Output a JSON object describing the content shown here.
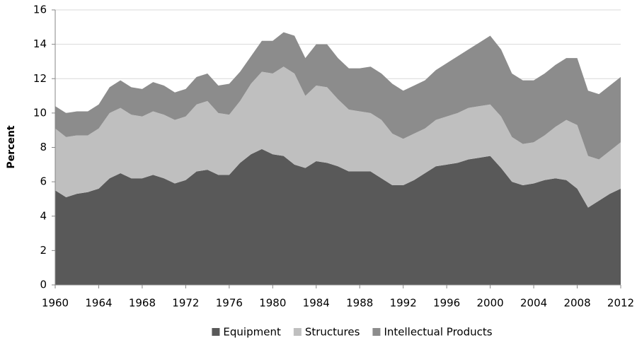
{
  "chart_data": {
    "type": "area",
    "stacked": true,
    "y_label": "Percent",
    "x": [
      1960,
      1961,
      1962,
      1963,
      1964,
      1965,
      1966,
      1967,
      1968,
      1969,
      1970,
      1971,
      1972,
      1973,
      1974,
      1975,
      1976,
      1977,
      1978,
      1979,
      1980,
      1981,
      1982,
      1983,
      1984,
      1985,
      1986,
      1987,
      1988,
      1989,
      1990,
      1991,
      1992,
      1993,
      1994,
      1995,
      1996,
      1997,
      1998,
      1999,
      2000,
      2001,
      2002,
      2003,
      2004,
      2005,
      2006,
      2007,
      2008,
      2009,
      2010,
      2011,
      2012
    ],
    "series": [
      {
        "name": "Equipment",
        "color": "#595959",
        "values": [
          5.5,
          5.1,
          5.3,
          5.4,
          5.6,
          6.2,
          6.5,
          6.2,
          6.2,
          6.4,
          6.2,
          5.9,
          6.1,
          6.6,
          6.7,
          6.4,
          6.4,
          7.1,
          7.6,
          7.9,
          7.6,
          7.5,
          7.0,
          6.8,
          7.2,
          7.1,
          6.9,
          6.6,
          6.6,
          6.6,
          6.2,
          5.8,
          5.8,
          6.1,
          6.5,
          6.9,
          7.0,
          7.1,
          7.3,
          7.4,
          7.5,
          6.8,
          6.0,
          5.8,
          5.9,
          6.1,
          6.2,
          6.1,
          5.6,
          4.5,
          4.9,
          5.3,
          5.6
        ]
      },
      {
        "name": "Structures",
        "color": "#bfbfbf",
        "values": [
          3.6,
          3.5,
          3.4,
          3.3,
          3.5,
          3.8,
          3.8,
          3.7,
          3.6,
          3.7,
          3.7,
          3.7,
          3.7,
          3.9,
          4.0,
          3.6,
          3.5,
          3.6,
          4.1,
          4.5,
          4.7,
          5.2,
          5.3,
          4.2,
          4.4,
          4.4,
          3.9,
          3.6,
          3.5,
          3.4,
          3.4,
          3.0,
          2.7,
          2.7,
          2.6,
          2.7,
          2.8,
          2.9,
          3.0,
          3.0,
          3.0,
          3.0,
          2.6,
          2.4,
          2.4,
          2.6,
          3.0,
          3.5,
          3.7,
          3.0,
          2.4,
          2.5,
          2.7
        ]
      },
      {
        "name": "Intellectual Products",
        "color": "#8c8c8c",
        "values": [
          1.3,
          1.4,
          1.4,
          1.4,
          1.4,
          1.5,
          1.6,
          1.6,
          1.6,
          1.7,
          1.7,
          1.6,
          1.6,
          1.6,
          1.6,
          1.6,
          1.8,
          1.7,
          1.6,
          1.8,
          1.9,
          2.0,
          2.2,
          2.2,
          2.4,
          2.5,
          2.4,
          2.4,
          2.5,
          2.7,
          2.7,
          2.9,
          2.8,
          2.8,
          2.8,
          2.9,
          3.1,
          3.3,
          3.4,
          3.7,
          4.0,
          3.9,
          3.7,
          3.7,
          3.6,
          3.6,
          3.6,
          3.6,
          3.9,
          3.8,
          3.8,
          3.8,
          3.8
        ]
      }
    ],
    "xlim": [
      1960,
      2012
    ],
    "xticks": [
      1960,
      1964,
      1968,
      1972,
      1976,
      1980,
      1984,
      1988,
      1992,
      1996,
      2000,
      2004,
      2008,
      2012
    ],
    "ylim": [
      0,
      16
    ],
    "yticks": [
      0,
      2,
      4,
      6,
      8,
      10,
      12,
      14,
      16
    ],
    "grid": true,
    "legend": "bottom"
  }
}
